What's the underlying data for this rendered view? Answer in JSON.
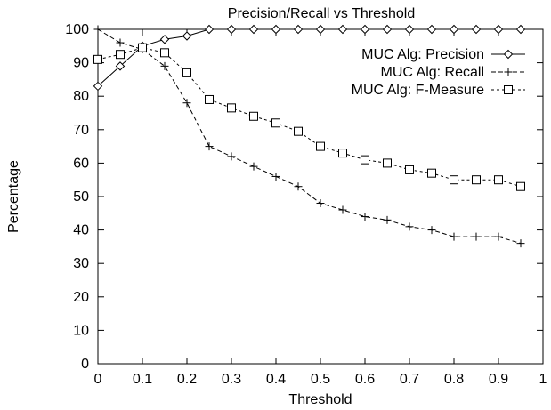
{
  "chart_data": {
    "type": "line",
    "title": "Precision/Recall vs Threshold",
    "xlabel": "Threshold",
    "ylabel": "Percentage",
    "xlim": [
      0,
      1
    ],
    "ylim": [
      0,
      100
    ],
    "xticks": [
      0,
      0.1,
      0.2,
      0.3,
      0.4,
      0.5,
      0.6,
      0.7,
      0.8,
      0.9,
      1
    ],
    "xtick_labels": [
      "0",
      "0.1",
      "0.2",
      "0.3",
      "0.4",
      "0.5",
      "0.6",
      "0.7",
      "0.8",
      "0.9",
      "1"
    ],
    "yticks": [
      0,
      10,
      20,
      30,
      40,
      50,
      60,
      70,
      80,
      90,
      100
    ],
    "ytick_labels": [
      "0",
      "10",
      "20",
      "30",
      "40",
      "50",
      "60",
      "70",
      "80",
      "90",
      "100"
    ],
    "grid": false,
    "legend_position": "top-right",
    "x": [
      0,
      0.05,
      0.1,
      0.15,
      0.2,
      0.25,
      0.3,
      0.35,
      0.4,
      0.45,
      0.5,
      0.55,
      0.6,
      0.65,
      0.7,
      0.75,
      0.8,
      0.85,
      0.9,
      0.95
    ],
    "series": [
      {
        "name": "MUC Alg: Precision",
        "marker": "diamond",
        "line": "solid",
        "color": "#000000",
        "values": [
          83,
          89,
          95,
          97,
          98,
          100,
          100,
          100,
          100,
          100,
          100,
          100,
          100,
          100,
          100,
          100,
          100,
          100,
          100,
          100
        ]
      },
      {
        "name": "MUC Alg: Recall",
        "marker": "plus",
        "line": "dashed",
        "color": "#000000",
        "values": [
          100,
          96,
          94,
          89,
          78,
          65,
          62,
          59,
          56,
          53,
          48,
          46,
          44,
          43,
          41,
          40,
          38,
          38,
          38,
          36
        ]
      },
      {
        "name": "MUC Alg: F-Measure",
        "marker": "square",
        "line": "dotted",
        "color": "#000000",
        "values": [
          91,
          92.5,
          94.5,
          93,
          87,
          79,
          76.5,
          74,
          72,
          69.5,
          65,
          63,
          61,
          60,
          58,
          57,
          55,
          55,
          55,
          53
        ]
      }
    ]
  }
}
